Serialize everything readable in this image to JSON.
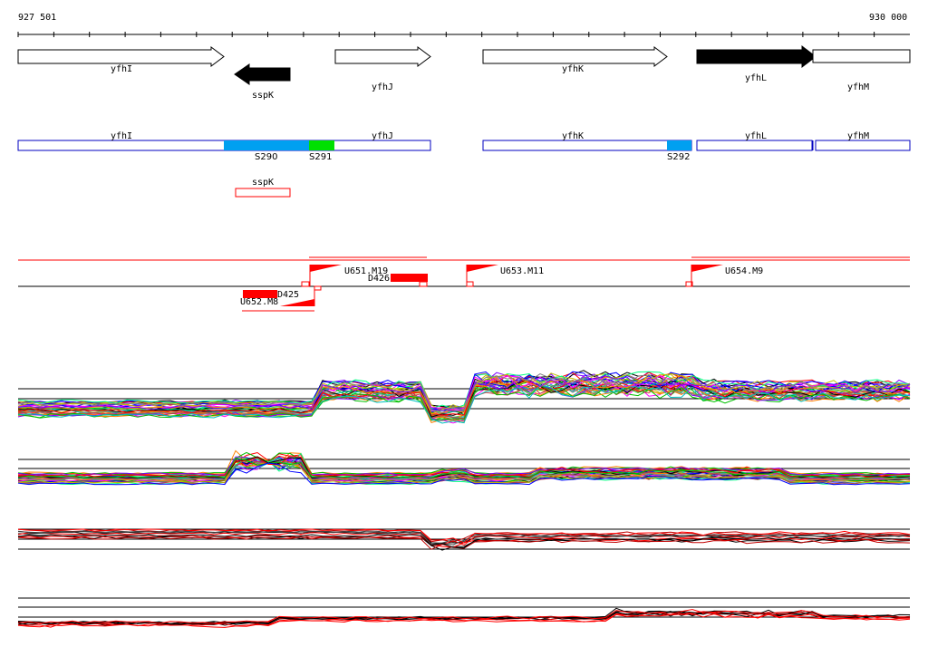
{
  "ruler": {
    "start_label": "927 501",
    "end_label": "930 000"
  },
  "genes": [
    {
      "name": "yfhI",
      "strand": "+",
      "filled": false
    },
    {
      "name": "sspK",
      "strand": "-",
      "filled": true
    },
    {
      "name": "yfhJ",
      "strand": "+",
      "filled": false
    },
    {
      "name": "yfhK",
      "strand": "+",
      "filled": false
    },
    {
      "name": "yfhL",
      "strand": "+",
      "filled": true
    },
    {
      "name": "yfhM",
      "strand": "+",
      "filled": false
    }
  ],
  "segments_track": {
    "labels": [
      "yfhI",
      "yfhJ",
      "yfhK",
      "yfhL",
      "yfhM"
    ],
    "features": [
      {
        "name": "S290",
        "color": "#00A0F0"
      },
      {
        "name": "S291",
        "color": "#00E000"
      },
      {
        "name": "S292",
        "color": "#00A0F0"
      }
    ],
    "sub_label": "sspK"
  },
  "operon_track": {
    "labels": [
      "U651.M19",
      "D426",
      "U653.M11",
      "U654.M9",
      "D425",
      "U652.M8"
    ],
    "color": "#FF0000"
  },
  "colors": {
    "feature_blue": "#00A0F0",
    "feature_green": "#00E000",
    "accent_red": "#FF0000",
    "outline_blue": "#0000C0"
  }
}
